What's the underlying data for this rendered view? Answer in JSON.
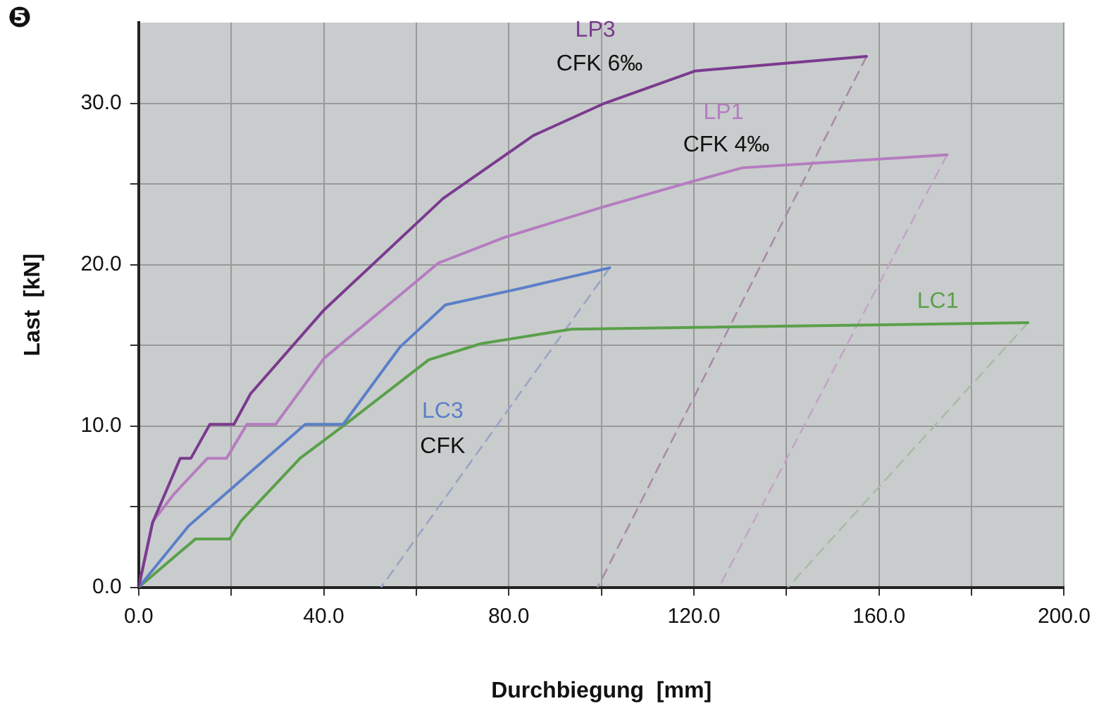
{
  "chart_data": {
    "type": "line",
    "xlabel": "Durchbiegung  [mm]",
    "ylabel": "Last  [kN]",
    "xlim": [
      0,
      200
    ],
    "xticks": [
      {
        "value": 0,
        "label": "0.0"
      },
      {
        "value": 20,
        "label": null
      },
      {
        "value": 40,
        "label": "40.0"
      },
      {
        "value": 60,
        "label": null
      },
      {
        "value": 80,
        "label": "80.0"
      },
      {
        "value": 100,
        "label": null
      },
      {
        "value": 120,
        "label": "120.0"
      },
      {
        "value": 140,
        "label": null
      },
      {
        "value": 160,
        "label": "160.0"
      },
      {
        "value": 180,
        "label": null
      },
      {
        "value": 200,
        "label": "200.0"
      }
    ],
    "ylim": [
      0,
      35
    ],
    "yticks": [
      {
        "value": 0,
        "label": "0.0"
      },
      {
        "value": 5,
        "label": null
      },
      {
        "value": 10,
        "label": "10.0"
      },
      {
        "value": 15,
        "label": null
      },
      {
        "value": 20,
        "label": "20.0"
      },
      {
        "value": 25,
        "label": null
      },
      {
        "value": 30,
        "label": "30.0"
      }
    ],
    "grid": true,
    "legend": false,
    "marker": "none",
    "series": [
      {
        "name": "LP3",
        "color": "#7b3a8f",
        "x": [
          0,
          3,
          9,
          11.3,
          15.4,
          20.6,
          24.2,
          40.1,
          65.8,
          85.3,
          100.7,
          120.3,
          157.3
        ],
        "values": [
          0,
          4,
          8,
          8,
          10.1,
          10.1,
          12,
          17.2,
          24.1,
          28,
          30,
          32,
          32.9
        ]
      },
      {
        "name": "LP1",
        "color": "#b57cc0",
        "x": [
          0,
          3.1,
          7.7,
          14.9,
          19,
          23.4,
          29.6,
          40.1,
          64.8,
          79.2,
          100.7,
          120.3,
          130.5,
          174.7
        ],
        "values": [
          0,
          4.1,
          5.8,
          8,
          8,
          10.1,
          10.1,
          14.2,
          20.1,
          21.7,
          23.6,
          25.2,
          26,
          26.8
        ]
      },
      {
        "name": "LC3",
        "color": "#5b7fc8",
        "x": [
          0,
          10.8,
          36,
          44.2,
          56.5,
          66.3,
          82.2,
          101.8
        ],
        "values": [
          0,
          3.8,
          10.1,
          10.1,
          14.9,
          17.5,
          18.5,
          19.8
        ]
      },
      {
        "name": "LC1",
        "color": "#5aa04a",
        "x": [
          0,
          12.3,
          19.7,
          22.1,
          34.9,
          44.2,
          62.7,
          74,
          93.5,
          192.2
        ],
        "values": [
          0,
          3,
          3,
          4.1,
          8,
          10,
          14.1,
          15.1,
          16,
          16.4
        ]
      },
      {
        "color": "#a98aa8",
        "line_style": "dashed",
        "x": [
          157.3,
          99.2
        ],
        "values": [
          32.9,
          0
        ]
      },
      {
        "color": "#c4a4c8",
        "line_style": "dashed",
        "x": [
          174.7,
          125.4
        ],
        "values": [
          26.8,
          0
        ]
      },
      {
        "color": "#9aa4c4",
        "line_style": "dashed",
        "x": [
          101.8,
          52.4
        ],
        "values": [
          19.8,
          0
        ]
      },
      {
        "color": "#a8bca4",
        "line_style": "dashed",
        "x": [
          192.2,
          140.3
        ],
        "values": [
          16.4,
          0
        ]
      }
    ],
    "annotations": [
      "❺",
      "CFK 6‰",
      "CFK 4‰",
      "CFK"
    ]
  }
}
